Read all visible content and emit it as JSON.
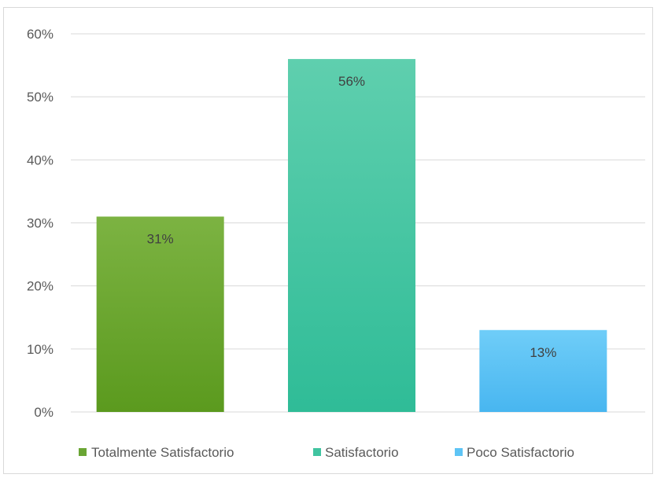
{
  "chart_data": {
    "type": "bar",
    "categories": [
      "Totalmente Satisfactorio",
      "Satisfactorio",
      "Poco Satisfactorio"
    ],
    "values": [
      31,
      56,
      13
    ],
    "data_labels": [
      "31%",
      "56%",
      "13%"
    ],
    "ylim": [
      0,
      60
    ],
    "y_ticks": [
      0,
      10,
      20,
      30,
      40,
      50,
      60
    ],
    "y_tick_labels": [
      "0%",
      "10%",
      "20%",
      "30%",
      "40%",
      "50%",
      "60%"
    ],
    "colors": [
      "#6aa534",
      "#40c4a0",
      "#5ec4f5"
    ],
    "grid": true,
    "legend_position": "bottom"
  }
}
